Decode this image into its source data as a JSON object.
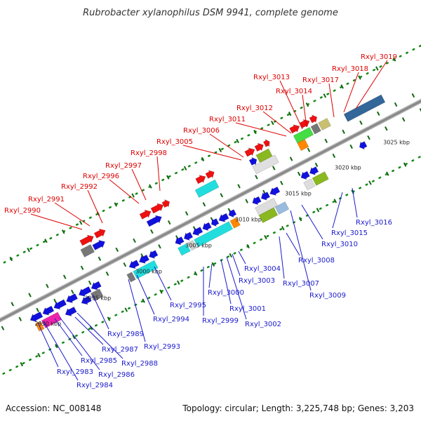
{
  "title": "Rubrobacter xylanophilus DSM 9941, complete genome",
  "accession": "Accession: NC_008148",
  "summary": "Topology: circular; Length: 3,225,748 bp; Genes: 3,203",
  "colors": {
    "top_label": "#dd0000",
    "bottom_label": "#1a1acc",
    "backbone": "#888888",
    "tick": "#118811"
  },
  "scale_labels": [
    "2990 kbp",
    "2995 kbp",
    "3000 kbp",
    "3005 kbp",
    "3010 kbp",
    "3015 kbp",
    "3020 kbp",
    "3025 kbp"
  ],
  "top_labels": [
    "Rxyl_2990",
    "Rxyl_2991",
    "Rxyl_2992",
    "Rxyl_2996",
    "Rxyl_2997",
    "Rxyl_2998",
    "Rxyl_3005",
    "Rxyl_3006",
    "Rxyl_3011",
    "Rxyl_3012",
    "Rxyl_3013",
    "Rxyl_3014",
    "Rxyl_3017",
    "Rxyl_3018",
    "Rxyl_3019"
  ],
  "bottom_labels": [
    "Rxyl_2983",
    "Rxyl_2984",
    "Rxyl_2985",
    "Rxyl_2986",
    "Rxyl_2987",
    "Rxyl_2988",
    "Rxyl_2989",
    "Rxyl_2993",
    "Rxyl_2994",
    "Rxyl_2995",
    "Rxyl_2999",
    "Rxyl_3000",
    "Rxyl_3001",
    "Rxyl_3002",
    "Rxyl_3003",
    "Rxyl_3004",
    "Rxyl_3007",
    "Rxyl_3008",
    "Rxyl_3009",
    "Rxyl_3010",
    "Rxyl_3015",
    "Rxyl_3016"
  ]
}
